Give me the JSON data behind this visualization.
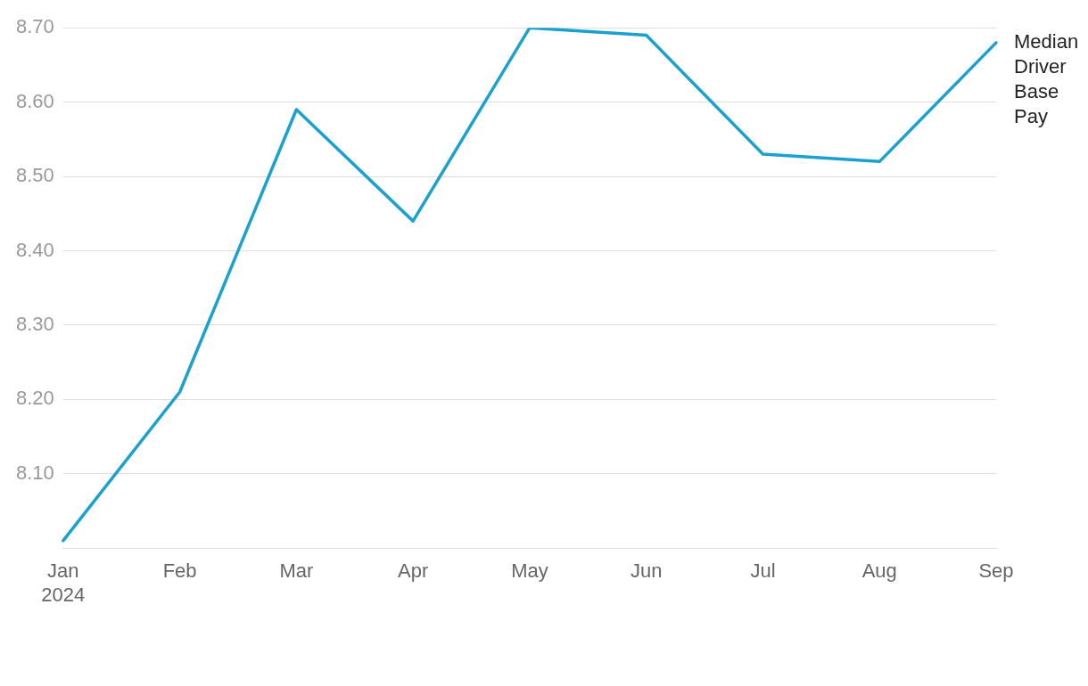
{
  "chart_data": {
    "type": "line",
    "categories": [
      "Jan\n2024",
      "Feb",
      "Mar",
      "Apr",
      "May",
      "Jun",
      "Jul",
      "Aug",
      "Sep"
    ],
    "series": [
      {
        "name": "Median Driver Base Pay",
        "color": "#1ba1ce",
        "values": [
          8.01,
          8.21,
          8.59,
          8.44,
          8.7,
          8.69,
          8.53,
          8.52,
          8.68
        ]
      }
    ],
    "ylim": [
      8.0,
      8.7
    ],
    "yticks": [
      {
        "value": 8.1,
        "label": "8.10"
      },
      {
        "value": 8.2,
        "label": "8.20"
      },
      {
        "value": 8.3,
        "label": "8.30"
      },
      {
        "value": 8.4,
        "label": "8.40"
      },
      {
        "value": 8.5,
        "label": "8.50"
      },
      {
        "value": 8.6,
        "label": "8.60"
      },
      {
        "value": 8.7,
        "label": "8.70"
      }
    ],
    "grid": "y",
    "legend": false,
    "marker": "none",
    "line_style": "solid"
  }
}
